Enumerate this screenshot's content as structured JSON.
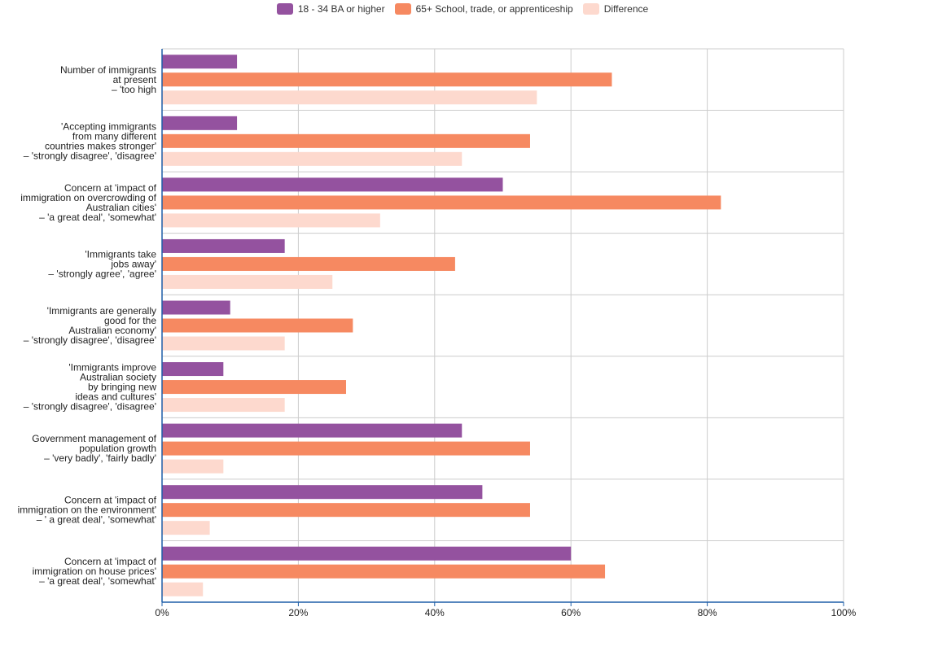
{
  "chart_data": {
    "type": "bar",
    "orientation": "horizontal",
    "categories": [
      [
        "Number of immigrants",
        "at present",
        "– 'too high"
      ],
      [
        "'Accepting immigrants",
        "from many different",
        "countries makes stronger'",
        "– 'strongly disagree', 'disagree'"
      ],
      [
        "Concern at 'impact of",
        "immigration on overcrowding of",
        "Australian cities'",
        "– 'a great deal', 'somewhat'"
      ],
      [
        "'Immigrants take",
        "jobs away'",
        "– 'strongly agree', 'agree'"
      ],
      [
        "'Immigrants are generally",
        "good for the",
        "Australian economy'",
        "– 'strongly disagree', 'disagree'"
      ],
      [
        "'Immigrants improve",
        "Australian society",
        "by bringing new",
        "ideas and cultures'",
        "– 'strongly disagree', 'disagree'"
      ],
      [
        "Government management of",
        "population growth",
        "– 'very badly', 'fairly badly'"
      ],
      [
        "Concern at 'impact of",
        "immigration on the environment'",
        "– ' a great deal', 'somewhat'"
      ],
      [
        "Concern at 'impact of",
        "immigration on house prices'",
        "– 'a great deal', 'somewhat'"
      ]
    ],
    "series": [
      {
        "name": "18 - 34 BA or higher",
        "color": "#94529f",
        "values": [
          11,
          11,
          50,
          18,
          10,
          9,
          44,
          47,
          60
        ]
      },
      {
        "name": "65+ School, trade, or apprenticeship",
        "color": "#f68961",
        "values": [
          66,
          54,
          82,
          43,
          28,
          27,
          54,
          54,
          65
        ]
      },
      {
        "name": "Difference",
        "color": "#fdd9ce",
        "values": [
          55,
          44,
          32,
          25,
          18,
          18,
          9,
          7,
          6
        ]
      }
    ],
    "xlim": [
      0,
      100
    ],
    "xticks": [
      "0%",
      "20%",
      "40%",
      "60%",
      "80%",
      "100%"
    ],
    "xtick_values": [
      0,
      20,
      40,
      60,
      80,
      100
    ],
    "grid": true,
    "legend_position": "top-center"
  }
}
